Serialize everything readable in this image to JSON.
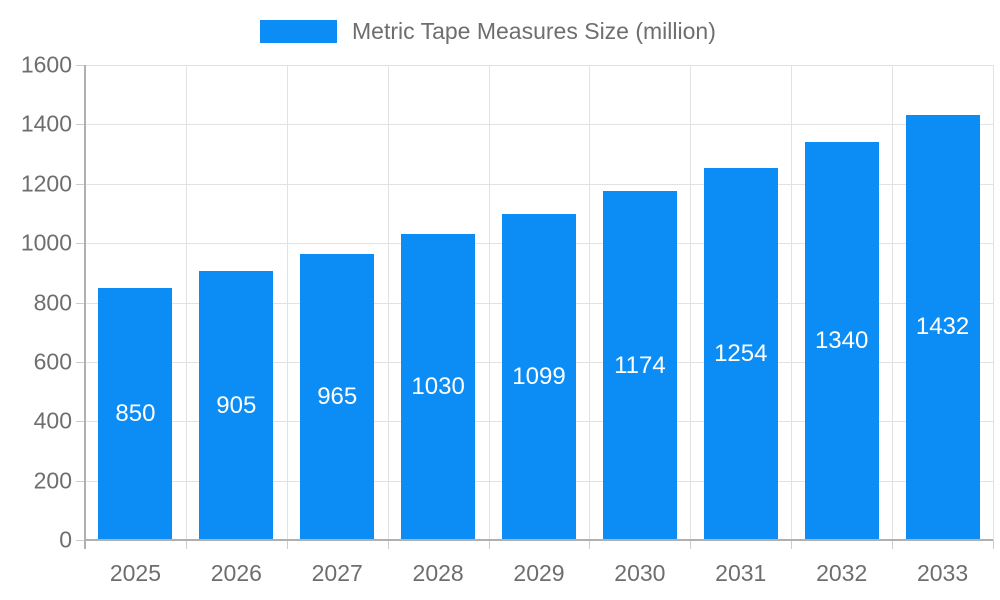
{
  "chart_data": {
    "type": "bar",
    "title": "Metric Tape Measures Size (million)",
    "legend": [
      "Metric Tape Measures Size (million)"
    ],
    "legend_position": "top",
    "categories": [
      "2025",
      "2026",
      "2027",
      "2028",
      "2029",
      "2030",
      "2031",
      "2032",
      "2033"
    ],
    "values": [
      850,
      905,
      965,
      1030,
      1099,
      1174,
      1254,
      1340,
      1432
    ],
    "xlabel": "",
    "ylabel": "",
    "ylim": [
      0,
      1600
    ],
    "ytick_step": 200,
    "yticks": [
      0,
      200,
      400,
      600,
      800,
      1000,
      1200,
      1400,
      1600
    ],
    "grid": true,
    "bar_labels_inside": true
  },
  "colors": {
    "bar": "#0b8df5",
    "bar_value_text": "#ffffff",
    "axis_text": "#6e6e6e",
    "legend_text": "#6e6e6e",
    "axis_line": "#b0b0b0",
    "gridline": "#e2e2e2",
    "tick": "#cccccc",
    "background": "#ffffff"
  }
}
